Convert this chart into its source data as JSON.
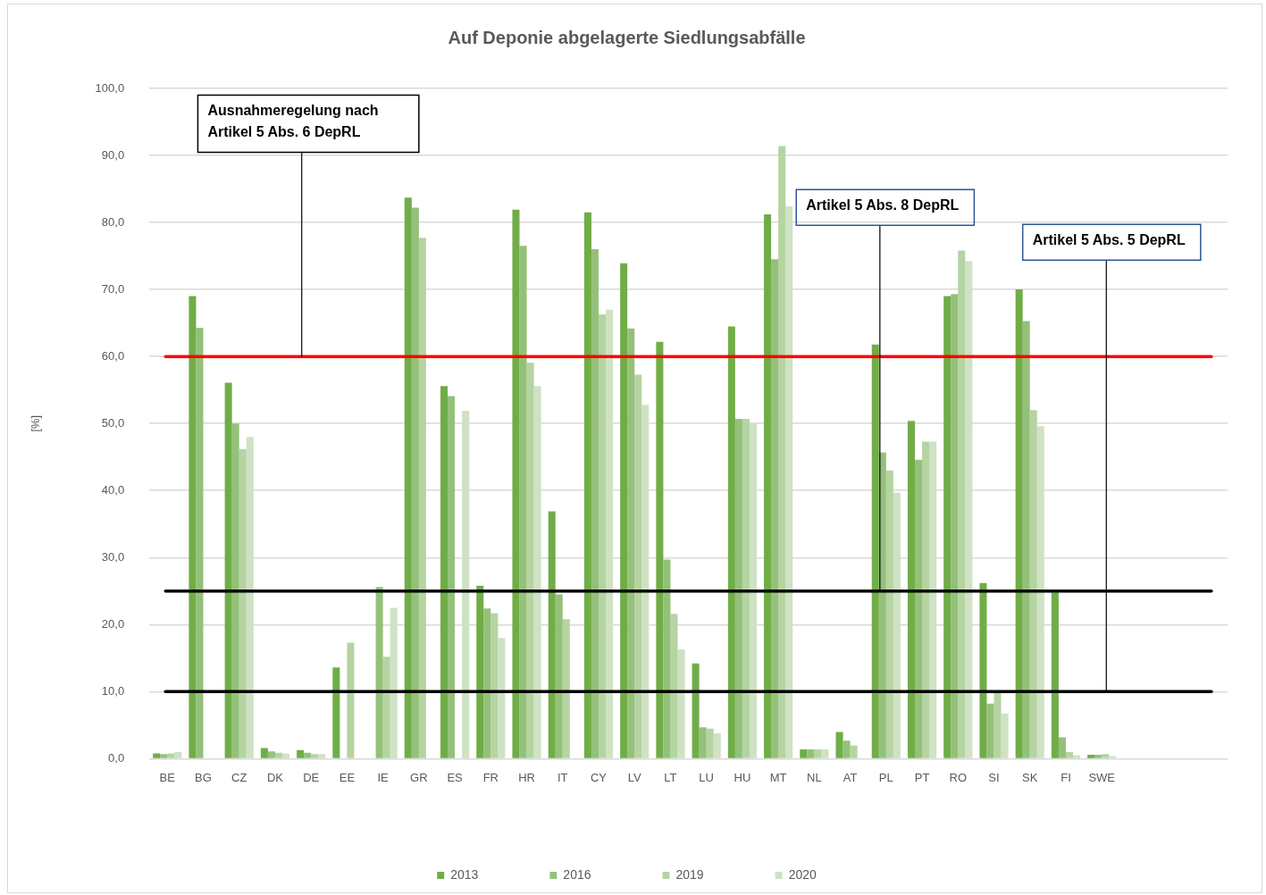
{
  "chart_data": {
    "type": "bar",
    "title": "Auf Deponie abgelagerte Siedlungsabfälle",
    "ylabel": "[%]",
    "categories": [
      "BE",
      "BG",
      "CZ",
      "DK",
      "DE",
      "EE",
      "IE",
      "GR",
      "ES",
      "FR",
      "HR",
      "IT",
      "CY",
      "LV",
      "LT",
      "LU",
      "HU",
      "MT",
      "NL",
      "AT",
      "PL",
      "PT",
      "RO",
      "SI",
      "SK",
      "FI",
      "SWE",
      null,
      null,
      null
    ],
    "series": [
      {
        "name": "2013",
        "color": "#70ad47",
        "values": [
          0.8,
          69.0,
          56.1,
          1.6,
          1.3,
          13.6,
          null,
          83.7,
          55.6,
          25.8,
          81.9,
          36.9,
          81.5,
          73.9,
          62.2,
          14.2,
          64.5,
          81.2,
          1.4,
          4.0,
          61.8,
          50.4,
          69.0,
          26.2,
          70.0,
          24.8,
          0.6,
          null,
          null,
          null
        ]
      },
      {
        "name": "2016",
        "color": "#94c179",
        "values": [
          0.7,
          64.3,
          50.0,
          1.1,
          0.9,
          null,
          25.6,
          82.2,
          54.1,
          22.4,
          76.5,
          24.5,
          76.0,
          64.2,
          29.7,
          4.7,
          50.7,
          74.5,
          1.4,
          2.7,
          45.7,
          44.6,
          69.3,
          8.2,
          65.3,
          3.2,
          0.6,
          null,
          null,
          null
        ]
      },
      {
        "name": "2019",
        "color": "#b5d4a2",
        "values": [
          0.8,
          null,
          46.2,
          0.9,
          0.7,
          17.3,
          15.2,
          77.7,
          null,
          21.7,
          59.1,
          20.8,
          66.3,
          57.3,
          21.6,
          4.5,
          50.7,
          91.4,
          1.4,
          2.0,
          43.0,
          47.3,
          75.8,
          9.8,
          52.0,
          1.0,
          0.7,
          null,
          null,
          null
        ]
      },
      {
        "name": "2020",
        "color": "#cfe2c4",
        "values": [
          1.0,
          null,
          48.0,
          0.8,
          0.7,
          null,
          22.5,
          null,
          51.9,
          18.0,
          55.6,
          null,
          67.0,
          52.8,
          16.3,
          3.8,
          50.0,
          82.4,
          1.4,
          null,
          39.7,
          47.3,
          74.2,
          6.7,
          49.6,
          0.5,
          0.4,
          null,
          null,
          null
        ]
      }
    ],
    "ylim": [
      0,
      100
    ],
    "yticks": [
      {
        "value": 0,
        "label": "0,0"
      },
      {
        "value": 10,
        "label": "10,0"
      },
      {
        "value": 20,
        "label": "20,0"
      },
      {
        "value": 30,
        "label": "30,0"
      },
      {
        "value": 40,
        "label": "40,0"
      },
      {
        "value": 50,
        "label": "50,0"
      },
      {
        "value": 60,
        "label": "60,0"
      },
      {
        "value": 70,
        "label": "70,0"
      },
      {
        "value": 80,
        "label": "80,0"
      },
      {
        "value": 90,
        "label": "90,0"
      },
      {
        "value": 100,
        "label": "100,0"
      }
    ],
    "grid": "y",
    "legend": "bottom",
    "ref_lines": [
      {
        "axis": "y",
        "value": 60,
        "label": "Ausnahmeregelung nach Artikel 5 Abs. 6 DepRL",
        "color": "#ff0000"
      },
      {
        "axis": "y",
        "value": 25,
        "label": "Artikel 5 Abs. 8 DepRL",
        "color": "#000000"
      },
      {
        "axis": "y",
        "value": 10,
        "label": "Artikel 5 Abs. 5 DepRL",
        "color": "#000000"
      }
    ]
  }
}
